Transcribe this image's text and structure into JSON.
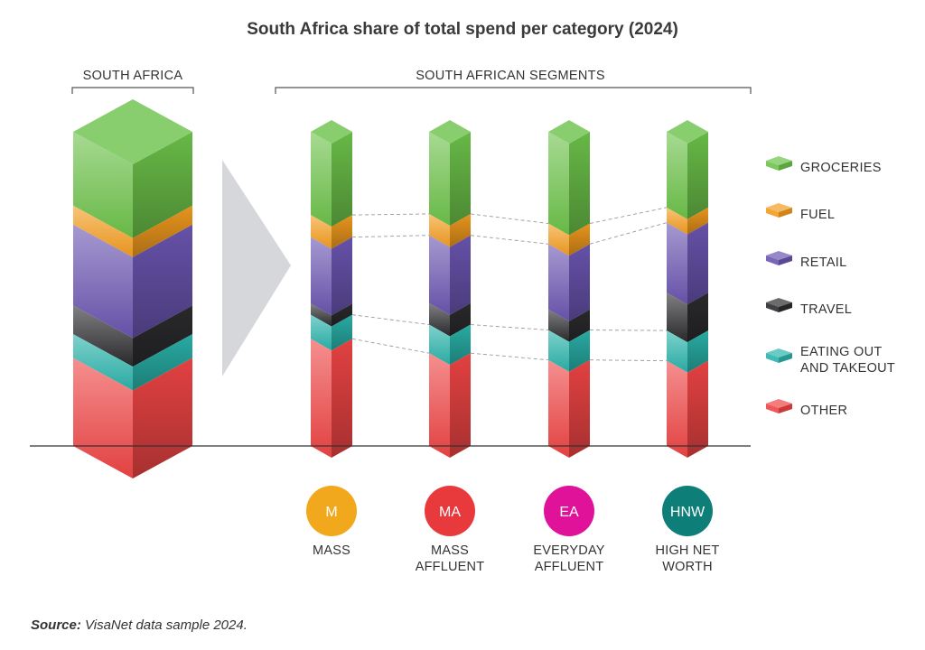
{
  "chart_data": {
    "type": "bar",
    "title": "South Africa share of total spend per category (2024)",
    "group_labels": {
      "overall": "SOUTH AFRICA",
      "segments": "SOUTH AFRICAN SEGMENTS"
    },
    "categories": [
      {
        "key": "groceries",
        "label": [
          "GROCERIES"
        ],
        "color": "#6cc24a"
      },
      {
        "key": "fuel",
        "label": [
          "FUEL"
        ],
        "color": "#f39c1e"
      },
      {
        "key": "retail",
        "label": [
          "RETAIL"
        ],
        "color": "#6a55b0"
      },
      {
        "key": "travel",
        "label": [
          "TRAVEL"
        ],
        "color": "#2b2b2e"
      },
      {
        "key": "eating",
        "label": [
          "EATING OUT",
          "AND TAKEOUT"
        ],
        "color": "#2ab3aa"
      },
      {
        "key": "other",
        "label": [
          "OTHER"
        ],
        "color": "#ee4444"
      }
    ],
    "series": [
      {
        "name": "SOUTH AFRICA",
        "values": [
          31,
          8,
          34,
          12,
          10,
          37
        ]
      },
      {
        "name": "MASS",
        "badge": "M",
        "label_lines": [
          "MASS"
        ],
        "badge_color": "#f2a81d",
        "values": [
          45,
          12,
          36,
          6,
          13,
          58
        ]
      },
      {
        "name": "MASS AFFLUENT",
        "badge": "MA",
        "label_lines": [
          "MASS",
          "AFFLUENT"
        ],
        "badge_color": "#e83a3d",
        "values": [
          46,
          12,
          38,
          12,
          16,
          52
        ]
      },
      {
        "name": "EVERYDAY AFFLUENT",
        "badge": "EA",
        "label_lines": [
          "EVERYDAY",
          "AFFLUENT"
        ],
        "badge_color": "#e0129a",
        "values": [
          49,
          11,
          35,
          11,
          16,
          46
        ]
      },
      {
        "name": "HIGH NET WORTH",
        "badge": "HNW",
        "label_lines": [
          "HIGH NET",
          "WORTH"
        ],
        "badge_color": "#0e7f78",
        "values": [
          40,
          8,
          37,
          20,
          16,
          45
        ]
      }
    ]
  },
  "source": {
    "prefix": "Source:",
    "text": " VisaNet data sample 2024."
  }
}
